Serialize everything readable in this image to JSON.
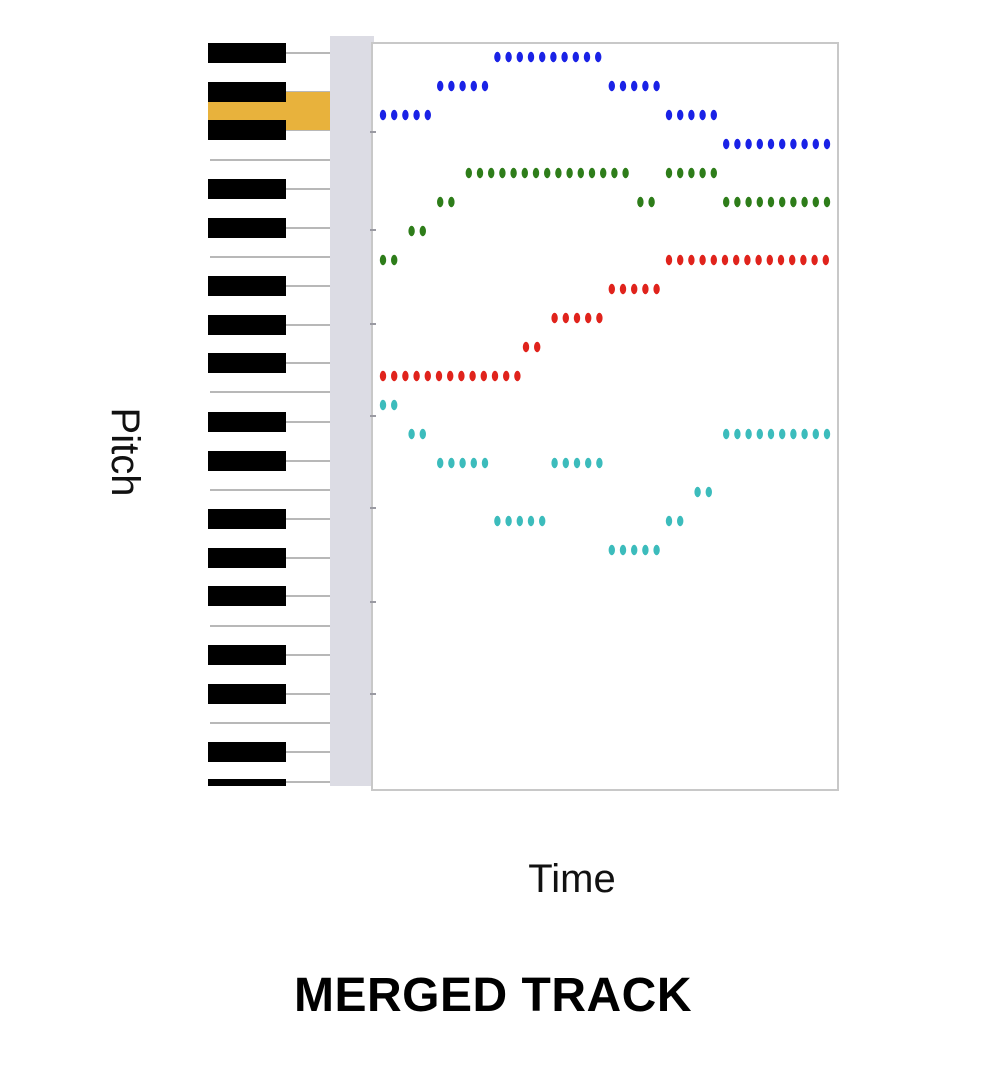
{
  "labels": {
    "y_axis": "Pitch",
    "x_axis": "Time",
    "caption": "MERGED TRACK"
  },
  "colors": {
    "track_blue": "#1a22e6",
    "track_green": "#2e7d1a",
    "track_red": "#e0231c",
    "track_cyan": "#3cbcbc",
    "highlight_key": "#e8b23c",
    "black_key": "#000000",
    "key_line": "#b8b8b8",
    "ruler": "#dcdce4",
    "frame": "#c8c8c8"
  },
  "piano": {
    "highlighted_key": "orange highlight near the top of the keyboard"
  },
  "tracks": [
    {
      "name": "",
      "color_key": "track_blue",
      "segments": [
        [
          0,
          2,
          10
        ],
        [
          2,
          4,
          11
        ],
        [
          4,
          8,
          12
        ],
        [
          8,
          10,
          11
        ],
        [
          10,
          12,
          10
        ],
        [
          12,
          16,
          9
        ]
      ]
    },
    {
      "name": "",
      "color_key": "track_green",
      "segments": [
        [
          0,
          1,
          5
        ],
        [
          1,
          2,
          6
        ],
        [
          2,
          3,
          7
        ],
        [
          3,
          9,
          8
        ],
        [
          9,
          10,
          7
        ],
        [
          10,
          12,
          8
        ],
        [
          12,
          16,
          7
        ]
      ]
    },
    {
      "name": "",
      "color_key": "track_red",
      "segments": [
        [
          0,
          5,
          1
        ],
        [
          5,
          6,
          2
        ],
        [
          6,
          8,
          3
        ],
        [
          8,
          10,
          4
        ],
        [
          10,
          16,
          5
        ]
      ]
    },
    {
      "name": "",
      "color_key": "track_cyan",
      "segments": [
        [
          0,
          1,
          0
        ],
        [
          1,
          2,
          -1
        ],
        [
          2,
          4,
          -2
        ],
        [
          4,
          6,
          -4
        ],
        [
          6,
          8,
          -2
        ],
        [
          8,
          10,
          -5
        ],
        [
          10,
          11,
          -4
        ],
        [
          11,
          12,
          -3
        ],
        [
          12,
          16,
          -1
        ]
      ]
    }
  ]
}
